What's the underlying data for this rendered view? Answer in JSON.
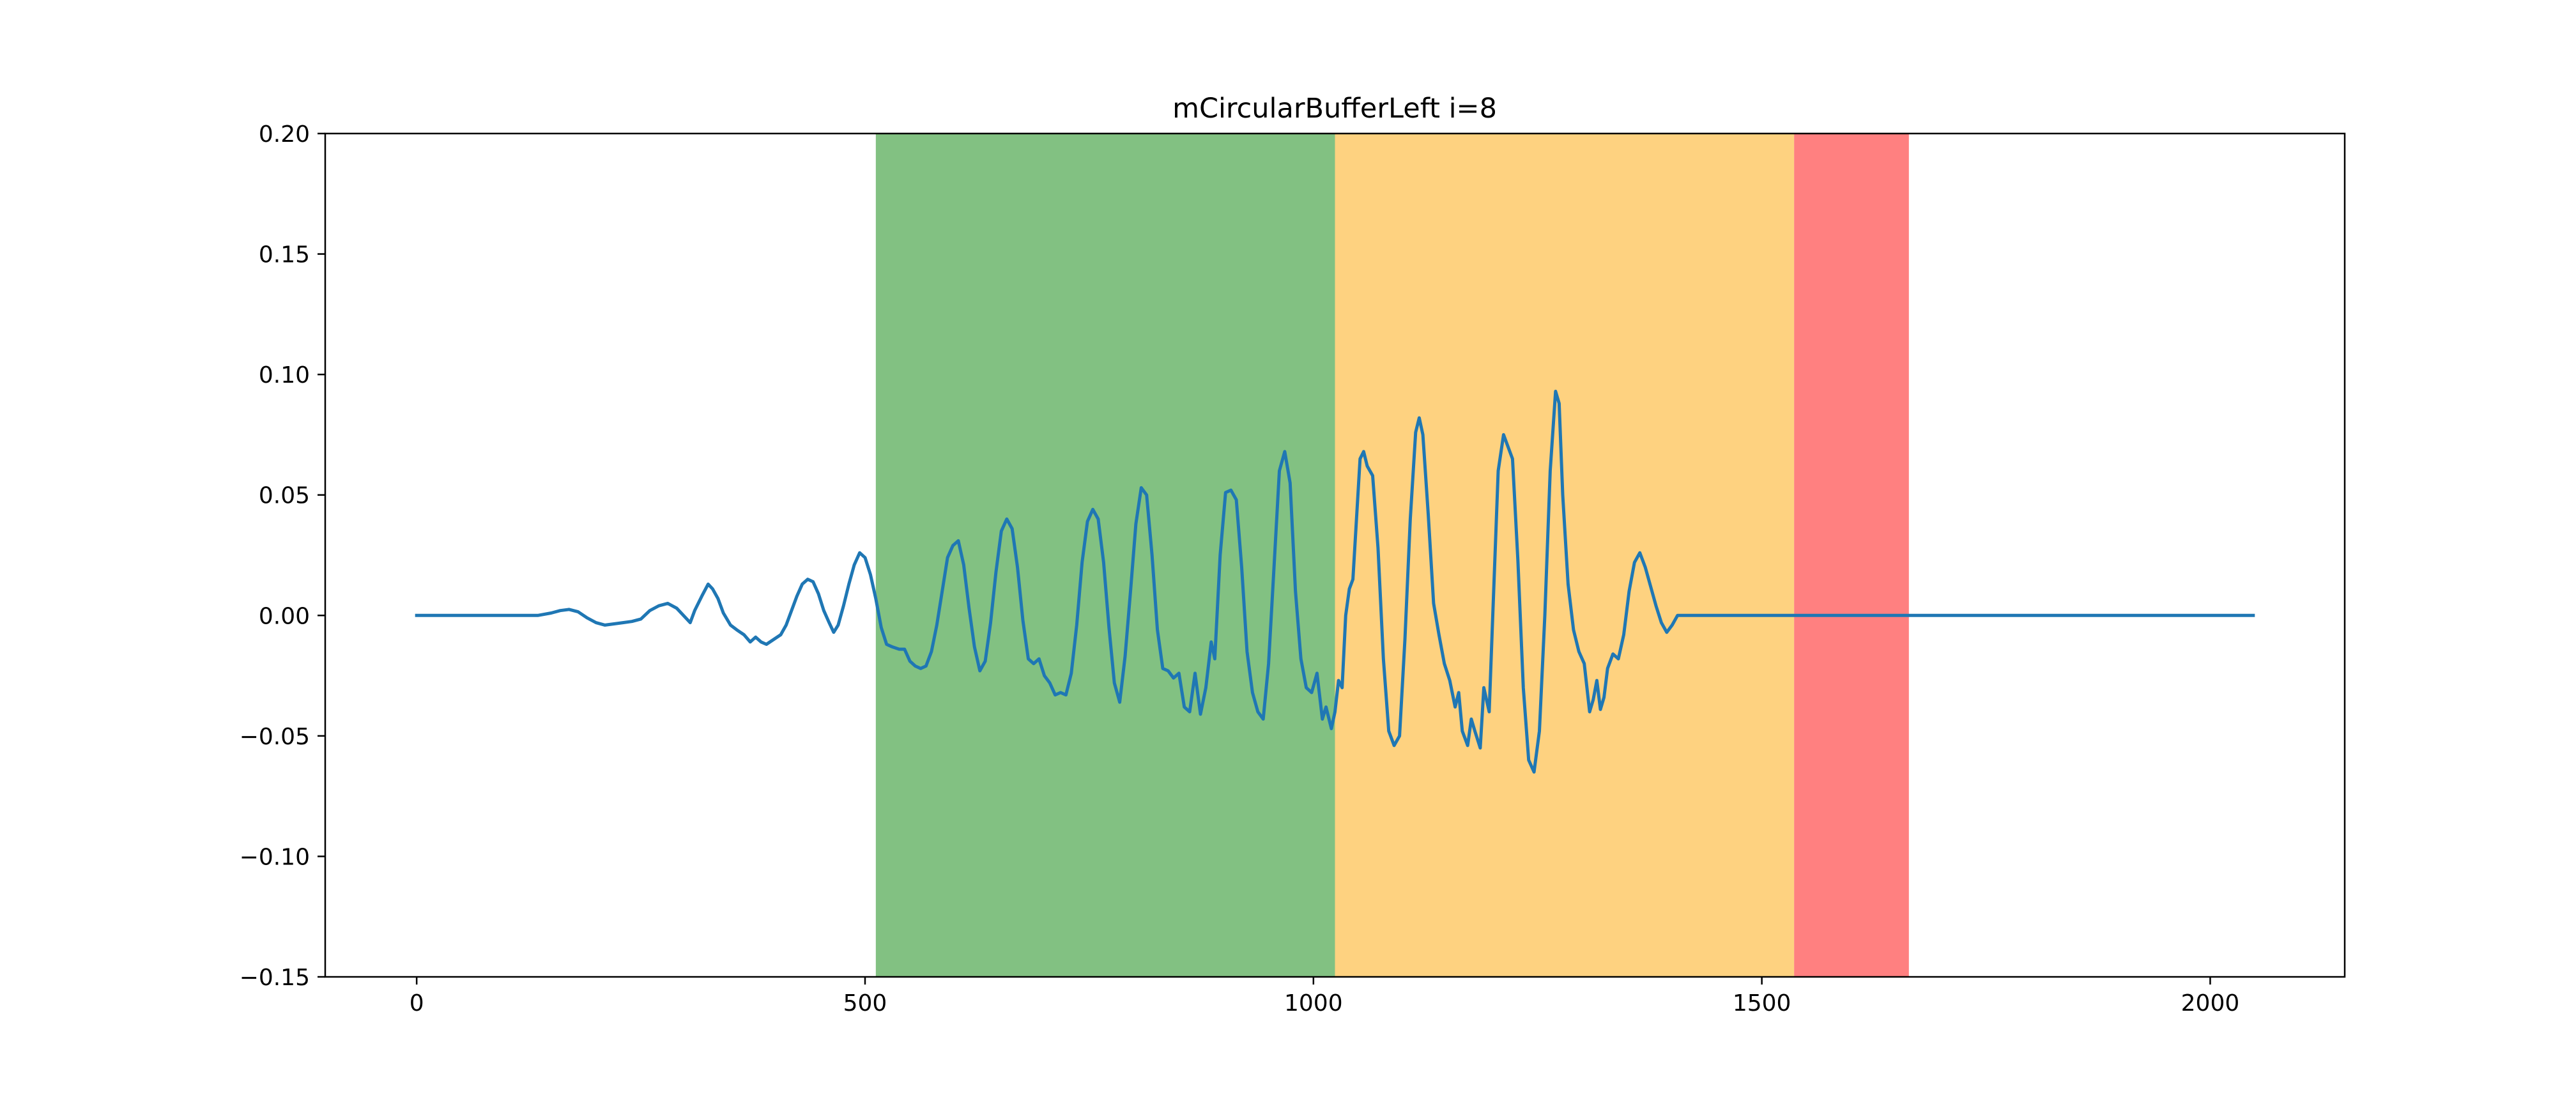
{
  "chart_data": {
    "type": "line",
    "title": "mCircularBufferLeft i=8",
    "xlabel": "",
    "ylabel": "",
    "xlim": [
      -102,
      2150
    ],
    "ylim": [
      -0.15,
      0.2
    ],
    "grid": false,
    "xticks": [
      0,
      500,
      1000,
      1500,
      2000
    ],
    "xtick_labels": [
      "0",
      "500",
      "1000",
      "1500",
      "2000"
    ],
    "yticks": [
      0.2,
      0.15,
      0.1,
      0.05,
      0.0,
      -0.05,
      -0.1,
      -0.15
    ],
    "ytick_labels": [
      "0.20",
      "0.15",
      "0.10",
      "0.05",
      "0.00",
      "−0.05",
      "−0.10",
      "−0.15"
    ],
    "shaded_regions": [
      {
        "x0": 512,
        "x1": 1024,
        "color": "#82c182"
      },
      {
        "x0": 1024,
        "x1": 1536,
        "color": "#fed280"
      },
      {
        "x0": 1536,
        "x1": 1664,
        "color": "#ff8080"
      }
    ],
    "series": [
      {
        "color": "#1f77b4",
        "points": [
          [
            0,
            0.0
          ],
          [
            135,
            0.0
          ],
          [
            150,
            0.001
          ],
          [
            160,
            0.002
          ],
          [
            170,
            0.0025
          ],
          [
            180,
            0.0015
          ],
          [
            190,
            -0.001
          ],
          [
            200,
            -0.003
          ],
          [
            210,
            -0.004
          ],
          [
            220,
            -0.0035
          ],
          [
            230,
            -0.003
          ],
          [
            240,
            -0.0025
          ],
          [
            250,
            -0.0015
          ],
          [
            260,
            0.002
          ],
          [
            270,
            0.004
          ],
          [
            280,
            0.005
          ],
          [
            290,
            0.003
          ],
          [
            300,
            -0.001
          ],
          [
            305,
            -0.003
          ],
          [
            310,
            0.002
          ],
          [
            318,
            0.008
          ],
          [
            325,
            0.013
          ],
          [
            330,
            0.011
          ],
          [
            336,
            0.007
          ],
          [
            342,
            0.001
          ],
          [
            350,
            -0.004
          ],
          [
            357,
            -0.006
          ],
          [
            365,
            -0.008
          ],
          [
            372,
            -0.011
          ],
          [
            378,
            -0.009
          ],
          [
            384,
            -0.011
          ],
          [
            390,
            -0.012
          ],
          [
            398,
            -0.01
          ],
          [
            406,
            -0.008
          ],
          [
            412,
            -0.004
          ],
          [
            418,
            0.002
          ],
          [
            424,
            0.008
          ],
          [
            430,
            0.013
          ],
          [
            436,
            0.015
          ],
          [
            442,
            0.014
          ],
          [
            448,
            0.009
          ],
          [
            454,
            0.002
          ],
          [
            460,
            -0.003
          ],
          [
            465,
            -0.007
          ],
          [
            470,
            -0.004
          ],
          [
            476,
            0.004
          ],
          [
            482,
            0.013
          ],
          [
            488,
            0.021
          ],
          [
            494,
            0.026
          ],
          [
            500,
            0.024
          ],
          [
            506,
            0.017
          ],
          [
            512,
            0.007
          ],
          [
            518,
            -0.005
          ],
          [
            524,
            -0.012
          ],
          [
            530,
            -0.013
          ],
          [
            538,
            -0.014
          ],
          [
            544,
            -0.014
          ],
          [
            550,
            -0.019
          ],
          [
            556,
            -0.021
          ],
          [
            562,
            -0.022
          ],
          [
            568,
            -0.021
          ],
          [
            574,
            -0.015
          ],
          [
            580,
            -0.004
          ],
          [
            586,
            0.01
          ],
          [
            592,
            0.024
          ],
          [
            598,
            0.029
          ],
          [
            604,
            0.031
          ],
          [
            610,
            0.021
          ],
          [
            616,
            0.003
          ],
          [
            622,
            -0.013
          ],
          [
            628,
            -0.023
          ],
          [
            634,
            -0.019
          ],
          [
            640,
            -0.003
          ],
          [
            646,
            0.018
          ],
          [
            652,
            0.035
          ],
          [
            658,
            0.04
          ],
          [
            664,
            0.036
          ],
          [
            670,
            0.02
          ],
          [
            676,
            -0.002
          ],
          [
            682,
            -0.018
          ],
          [
            688,
            -0.02
          ],
          [
            694,
            -0.018
          ],
          [
            700,
            -0.025
          ],
          [
            706,
            -0.028
          ],
          [
            712,
            -0.033
          ],
          [
            718,
            -0.032
          ],
          [
            724,
            -0.033
          ],
          [
            730,
            -0.024
          ],
          [
            736,
            -0.004
          ],
          [
            742,
            0.022
          ],
          [
            748,
            0.039
          ],
          [
            754,
            0.044
          ],
          [
            760,
            0.04
          ],
          [
            766,
            0.022
          ],
          [
            772,
            -0.005
          ],
          [
            778,
            -0.028
          ],
          [
            784,
            -0.036
          ],
          [
            790,
            -0.017
          ],
          [
            796,
            0.01
          ],
          [
            802,
            0.038
          ],
          [
            808,
            0.053
          ],
          [
            814,
            0.05
          ],
          [
            820,
            0.025
          ],
          [
            826,
            -0.006
          ],
          [
            832,
            -0.022
          ],
          [
            838,
            -0.023
          ],
          [
            844,
            -0.026
          ],
          [
            850,
            -0.024
          ],
          [
            856,
            -0.038
          ],
          [
            862,
            -0.04
          ],
          [
            868,
            -0.024
          ],
          [
            874,
            -0.041
          ],
          [
            880,
            -0.03
          ],
          [
            886,
            -0.011
          ],
          [
            890,
            -0.018
          ],
          [
            896,
            0.025
          ],
          [
            902,
            0.051
          ],
          [
            908,
            0.052
          ],
          [
            914,
            0.048
          ],
          [
            920,
            0.02
          ],
          [
            926,
            -0.015
          ],
          [
            932,
            -0.032
          ],
          [
            938,
            -0.04
          ],
          [
            944,
            -0.043
          ],
          [
            950,
            -0.02
          ],
          [
            956,
            0.02
          ],
          [
            962,
            0.06
          ],
          [
            968,
            0.068
          ],
          [
            974,
            0.055
          ],
          [
            980,
            0.01
          ],
          [
            986,
            -0.018
          ],
          [
            992,
            -0.03
          ],
          [
            998,
            -0.032
          ],
          [
            1004,
            -0.024
          ],
          [
            1010,
            -0.043
          ],
          [
            1014,
            -0.038
          ],
          [
            1020,
            -0.047
          ],
          [
            1024,
            -0.04
          ],
          [
            1028,
            -0.027
          ],
          [
            1032,
            -0.03
          ],
          [
            1036,
            0.0
          ],
          [
            1040,
            0.011
          ],
          [
            1044,
            0.015
          ],
          [
            1048,
            0.04
          ],
          [
            1052,
            0.065
          ],
          [
            1056,
            0.068
          ],
          [
            1060,
            0.062
          ],
          [
            1066,
            0.058
          ],
          [
            1072,
            0.028
          ],
          [
            1078,
            -0.018
          ],
          [
            1084,
            -0.048
          ],
          [
            1090,
            -0.054
          ],
          [
            1096,
            -0.05
          ],
          [
            1102,
            -0.01
          ],
          [
            1108,
            0.04
          ],
          [
            1114,
            0.076
          ],
          [
            1118,
            0.082
          ],
          [
            1122,
            0.075
          ],
          [
            1128,
            0.042
          ],
          [
            1134,
            0.005
          ],
          [
            1140,
            -0.008
          ],
          [
            1146,
            -0.02
          ],
          [
            1152,
            -0.027
          ],
          [
            1158,
            -0.038
          ],
          [
            1162,
            -0.032
          ],
          [
            1166,
            -0.048
          ],
          [
            1172,
            -0.054
          ],
          [
            1176,
            -0.043
          ],
          [
            1180,
            -0.048
          ],
          [
            1186,
            -0.055
          ],
          [
            1190,
            -0.03
          ],
          [
            1196,
            -0.04
          ],
          [
            1200,
            0.0
          ],
          [
            1206,
            0.06
          ],
          [
            1212,
            0.075
          ],
          [
            1218,
            0.069
          ],
          [
            1222,
            0.065
          ],
          [
            1228,
            0.023
          ],
          [
            1234,
            -0.03
          ],
          [
            1240,
            -0.06
          ],
          [
            1246,
            -0.065
          ],
          [
            1252,
            -0.048
          ],
          [
            1258,
            0.0
          ],
          [
            1264,
            0.06
          ],
          [
            1270,
            0.093
          ],
          [
            1274,
            0.088
          ],
          [
            1278,
            0.05
          ],
          [
            1284,
            0.013
          ],
          [
            1290,
            -0.006
          ],
          [
            1296,
            -0.015
          ],
          [
            1302,
            -0.02
          ],
          [
            1308,
            -0.04
          ],
          [
            1312,
            -0.035
          ],
          [
            1316,
            -0.027
          ],
          [
            1320,
            -0.039
          ],
          [
            1324,
            -0.034
          ],
          [
            1328,
            -0.022
          ],
          [
            1334,
            -0.016
          ],
          [
            1340,
            -0.018
          ],
          [
            1346,
            -0.008
          ],
          [
            1352,
            0.01
          ],
          [
            1358,
            0.022
          ],
          [
            1364,
            0.026
          ],
          [
            1370,
            0.02
          ],
          [
            1376,
            0.012
          ],
          [
            1382,
            0.004
          ],
          [
            1388,
            -0.003
          ],
          [
            1394,
            -0.007
          ],
          [
            1400,
            -0.004
          ],
          [
            1406,
            0.0
          ],
          [
            1410,
            0.0
          ],
          [
            2048,
            0.0
          ]
        ]
      }
    ]
  }
}
